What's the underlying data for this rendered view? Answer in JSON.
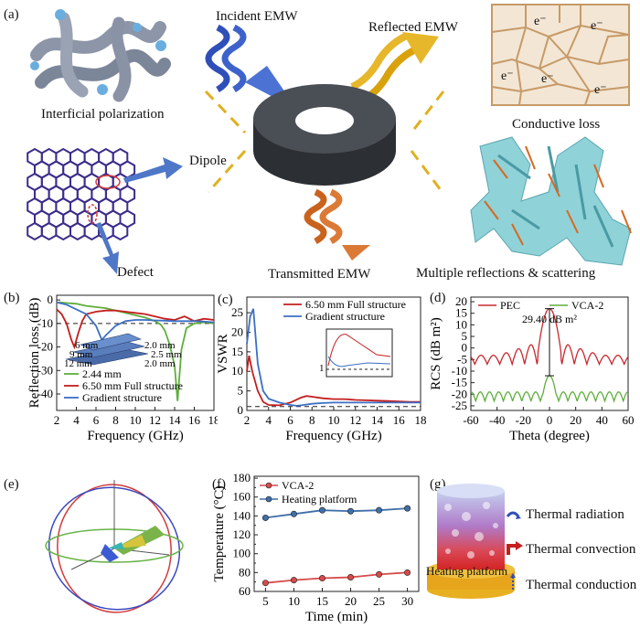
{
  "panel_labels": {
    "a": "(a)",
    "b": "(b)",
    "c": "(c)",
    "d": "(d)",
    "e": "(e)",
    "f": "(f)",
    "g": "(g)"
  },
  "panel_a": {
    "incident": "Incident  EMW",
    "reflected": "Reflected EMW",
    "transmitted": "Transmitted EMW",
    "interfacial": "Interficial polarization",
    "dipole": "Dipole",
    "defect": "Defect",
    "conductive": "Conductive loss",
    "multiple": "Multiple reflections  &  scattering",
    "electron": "e⁻",
    "colors": {
      "incident": "#2f4fb8",
      "reflected": "#d9a20c",
      "transmitted": "#c9621d",
      "ring": "#3a3d42",
      "cell": "#c69a68",
      "foam": "#6fc2cc",
      "hex": "#3b2d8c"
    }
  },
  "panel_b": {
    "ylabel": "Reflection loss (dB)",
    "xlabel": "Frequency (GHz)",
    "xticks": [
      "2",
      "4",
      "6",
      "8",
      "10",
      "12",
      "14",
      "16",
      "18"
    ],
    "yticks": [
      "0",
      "-10",
      "-20",
      "-30",
      "-40"
    ],
    "legend": [
      "2.44 mm",
      "6.50 mm Full structure",
      "Gradient structure"
    ],
    "inset": {
      "t1": "2.0 mm",
      "t2": "2.5 mm",
      "t3": "2.0 mm",
      "l1": "12 mm",
      "l2": "9 mm",
      "l3": "6 mm"
    },
    "chart_data": {
      "type": "line",
      "xlim": [
        2,
        18
      ],
      "ylim": [
        -47,
        2
      ],
      "series": [
        {
          "name": "2.44 mm",
          "color": "#5fae3c",
          "x": [
            2.2,
            3,
            4,
            5,
            6,
            7,
            8,
            9,
            10,
            11,
            12,
            12.6,
            13,
            13.5,
            14,
            14.3,
            14.7,
            15.2,
            16,
            17,
            18
          ],
          "y": [
            -1,
            -1.3,
            -1.6,
            -2.5,
            -3,
            -3.5,
            -4.5,
            -5.5,
            -6.5,
            -7.5,
            -9,
            -10.5,
            -13,
            -19,
            -28,
            -43,
            -21,
            -12,
            -10,
            -9.5,
            -10
          ]
        },
        {
          "name": "6.50 mm Full structure",
          "color": "#c41e1e",
          "x": [
            2,
            2.5,
            3,
            3.5,
            3.8,
            4.2,
            4.6,
            5,
            6,
            7,
            8,
            9,
            10,
            11,
            12,
            13,
            14,
            15,
            15.5,
            16,
            17,
            18
          ],
          "y": [
            -4,
            -6,
            -10,
            -17,
            -20,
            -14,
            -9,
            -6,
            -5,
            -4.5,
            -4.5,
            -5,
            -5.5,
            -6,
            -7,
            -8,
            -8.5,
            -7,
            -8,
            -9,
            -8,
            -8.5
          ]
        },
        {
          "name": "Gradient structure",
          "color": "#3b6fc4",
          "x": [
            2,
            3,
            4,
            5,
            6,
            6.6,
            7,
            8,
            9,
            10,
            11,
            12,
            13,
            14,
            15,
            16,
            17,
            18
          ],
          "y": [
            -1,
            -2,
            -4,
            -6,
            -11,
            -17,
            -15,
            -11,
            -9,
            -8.5,
            -8.5,
            -8.7,
            -8.8,
            -9,
            -9,
            -9,
            -9.2,
            -9.5
          ]
        }
      ],
      "reference_line": -10
    }
  },
  "panel_c": {
    "ylabel": "VSWR",
    "xlabel": "Frequency (GHz)",
    "xticks": [
      "2",
      "4",
      "6",
      "8",
      "10",
      "12",
      "14",
      "16",
      "18"
    ],
    "yticks": [
      "0",
      "5",
      "10",
      "15",
      "20",
      "25"
    ],
    "legend": [
      "6.50 mm Full structure",
      "Gradient structure"
    ],
    "inset_tick": "1",
    "chart_data": {
      "type": "line",
      "xlim": [
        2,
        18
      ],
      "ylim": [
        0,
        29
      ],
      "series": [
        {
          "name": "6.50 mm Full structure",
          "color": "#c41e1e",
          "x": [
            2,
            2.2,
            2.5,
            3,
            3.5,
            4,
            5,
            6,
            7,
            7.5,
            8,
            9,
            10,
            11,
            12,
            13,
            14,
            15,
            16,
            17,
            18
          ],
          "y": [
            10,
            14,
            10,
            5,
            2.2,
            1.4,
            1.3,
            2,
            3.3,
            3.7,
            3.5,
            3.1,
            2.9,
            2.9,
            2.7,
            2.6,
            2.5,
            2.4,
            2.3,
            2.2,
            2.2
          ]
        },
        {
          "name": "Gradient structure",
          "color": "#3b6fc4",
          "x": [
            2,
            2.3,
            2.6,
            3,
            3.5,
            4,
            5,
            6,
            6.6,
            7,
            8,
            9,
            10,
            12,
            14,
            16,
            18
          ],
          "y": [
            17,
            24,
            26,
            12,
            5,
            3,
            2,
            1.4,
            1.2,
            1.3,
            1.7,
            1.9,
            2,
            2,
            2,
            2,
            2
          ]
        }
      ],
      "reference_line": 1
    }
  },
  "panel_d": {
    "ylabel": "RCS (dB m²)",
    "xlabel": "Theta (degree)",
    "xticks": [
      "-60",
      "-40",
      "-20",
      "0",
      "20",
      "40",
      "60"
    ],
    "yticks": [
      "20",
      "15",
      "10",
      "5",
      "0",
      "-5",
      "-10",
      "-15",
      "-20",
      "-25"
    ],
    "legend": [
      "PEC",
      "VCA-2"
    ],
    "annotation": "29.40 dB m²",
    "chart_data": {
      "type": "line",
      "xlim": [
        -60,
        60
      ],
      "ylim": [
        -27,
        22
      ],
      "series": [
        {
          "name": "PEC",
          "color": "#c8282f",
          "center_peak": 17,
          "sidelobe_start": -7
        },
        {
          "name": "VCA-2",
          "color": "#5fae3c",
          "center_peak": -12,
          "baseline": -23
        }
      ]
    }
  },
  "panel_f": {
    "ylabel": "Temperature (°C)",
    "xlabel": "Time (min)",
    "xticks": [
      "5",
      "10",
      "15",
      "20",
      "25",
      "30"
    ],
    "yticks": [
      "60",
      "70",
      "80",
      "90",
      "100",
      "110",
      "120",
      "130",
      "140",
      "150",
      "160",
      "170",
      "180"
    ],
    "legend": [
      "VCA-2",
      "Heating platform"
    ],
    "chart_data": {
      "type": "line",
      "xlim": [
        3,
        32
      ],
      "ylim": [
        60,
        182
      ],
      "x": [
        5,
        10,
        15,
        20,
        25,
        30
      ],
      "series": [
        {
          "name": "VCA-2",
          "color": "#d64a4a",
          "values": [
            69,
            72,
            74,
            75,
            78,
            80
          ]
        },
        {
          "name": "Heating platform",
          "color": "#3f6fa8",
          "values": [
            138,
            142,
            146,
            145,
            146,
            148
          ]
        }
      ]
    }
  },
  "panel_g": {
    "radiation": "Thermal radiation",
    "convection": "Thermal convection",
    "conduction": "Thermal conduction",
    "platform": "Heating platform"
  }
}
